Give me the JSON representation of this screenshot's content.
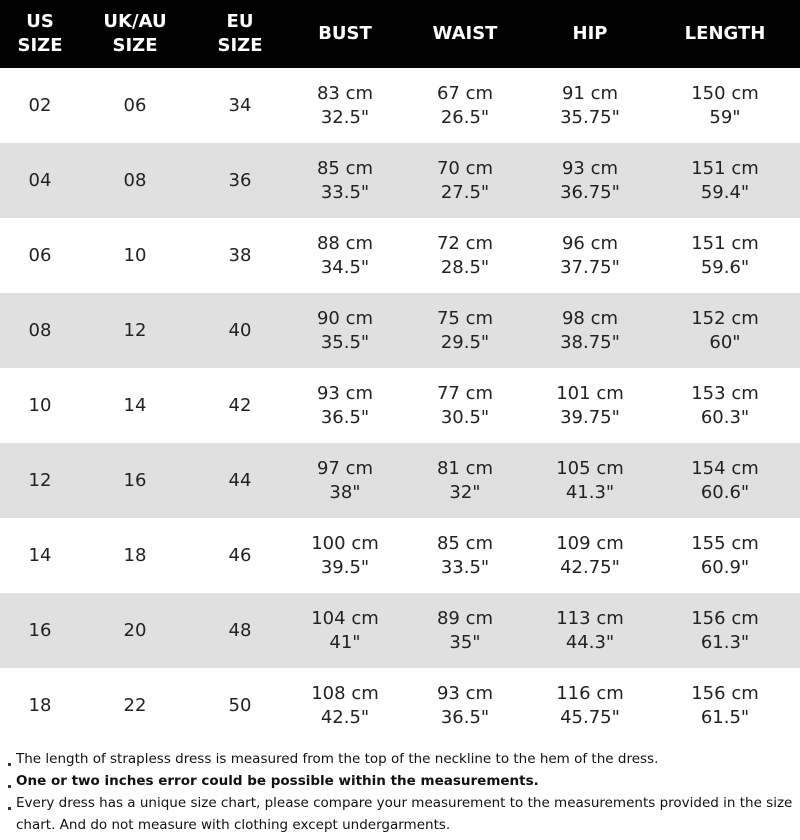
{
  "table": {
    "header": [
      [
        "US",
        "SIZE"
      ],
      [
        "UK/AU",
        "SIZE"
      ],
      [
        "EU",
        "SIZE"
      ],
      [
        "BUST"
      ],
      [
        "WAIST"
      ],
      [
        "HIP"
      ],
      [
        "LENGTH"
      ]
    ],
    "rows": [
      [
        "02",
        "06",
        "34",
        [
          "83 cm",
          "32.5\""
        ],
        [
          "67 cm",
          "26.5\""
        ],
        [
          "91 cm",
          "35.75\""
        ],
        [
          "150 cm",
          "59\""
        ]
      ],
      [
        "04",
        "08",
        "36",
        [
          "85 cm",
          "33.5\""
        ],
        [
          "70 cm",
          "27.5\""
        ],
        [
          "93 cm",
          "36.75\""
        ],
        [
          "151 cm",
          "59.4\""
        ]
      ],
      [
        "06",
        "10",
        "38",
        [
          "88 cm",
          "34.5\""
        ],
        [
          "72 cm",
          "28.5\""
        ],
        [
          "96 cm",
          "37.75\""
        ],
        [
          "151 cm",
          "59.6\""
        ]
      ],
      [
        "08",
        "12",
        "40",
        [
          "90 cm",
          "35.5\""
        ],
        [
          "75 cm",
          "29.5\""
        ],
        [
          "98 cm",
          "38.75\""
        ],
        [
          "152 cm",
          "60\""
        ]
      ],
      [
        "10",
        "14",
        "42",
        [
          "93 cm",
          "36.5\""
        ],
        [
          "77 cm",
          "30.5\""
        ],
        [
          "101 cm",
          "39.75\""
        ],
        [
          "153 cm",
          "60.3\""
        ]
      ],
      [
        "12",
        "16",
        "44",
        [
          "97 cm",
          "38\""
        ],
        [
          "81 cm",
          "32\""
        ],
        [
          "105 cm",
          "41.3\""
        ],
        [
          "154 cm",
          "60.6\""
        ]
      ],
      [
        "14",
        "18",
        "46",
        [
          "100 cm",
          "39.5\""
        ],
        [
          "85 cm",
          "33.5\""
        ],
        [
          "109 cm",
          "42.75\""
        ],
        [
          "155 cm",
          "60.9\""
        ]
      ],
      [
        "16",
        "20",
        "48",
        [
          "104 cm",
          "41\""
        ],
        [
          "89 cm",
          "35\""
        ],
        [
          "113 cm",
          "44.3\""
        ],
        [
          "156 cm",
          "61.3\""
        ]
      ],
      [
        "18",
        "22",
        "50",
        [
          "108 cm",
          "42.5\""
        ],
        [
          "93 cm",
          "36.5\""
        ],
        [
          "116 cm",
          "45.75\""
        ],
        [
          "156 cm",
          "61.5\""
        ]
      ]
    ]
  },
  "notes": [
    "The length of strapless dress is measured from the top of the neckline to the hem of the dress.",
    "One or two inches error could be possible within the measurements.",
    "Every dress has a unique size chart, please compare your measurement to the measurements provided in the size chart. And do not measure with clothing except undergarments."
  ]
}
